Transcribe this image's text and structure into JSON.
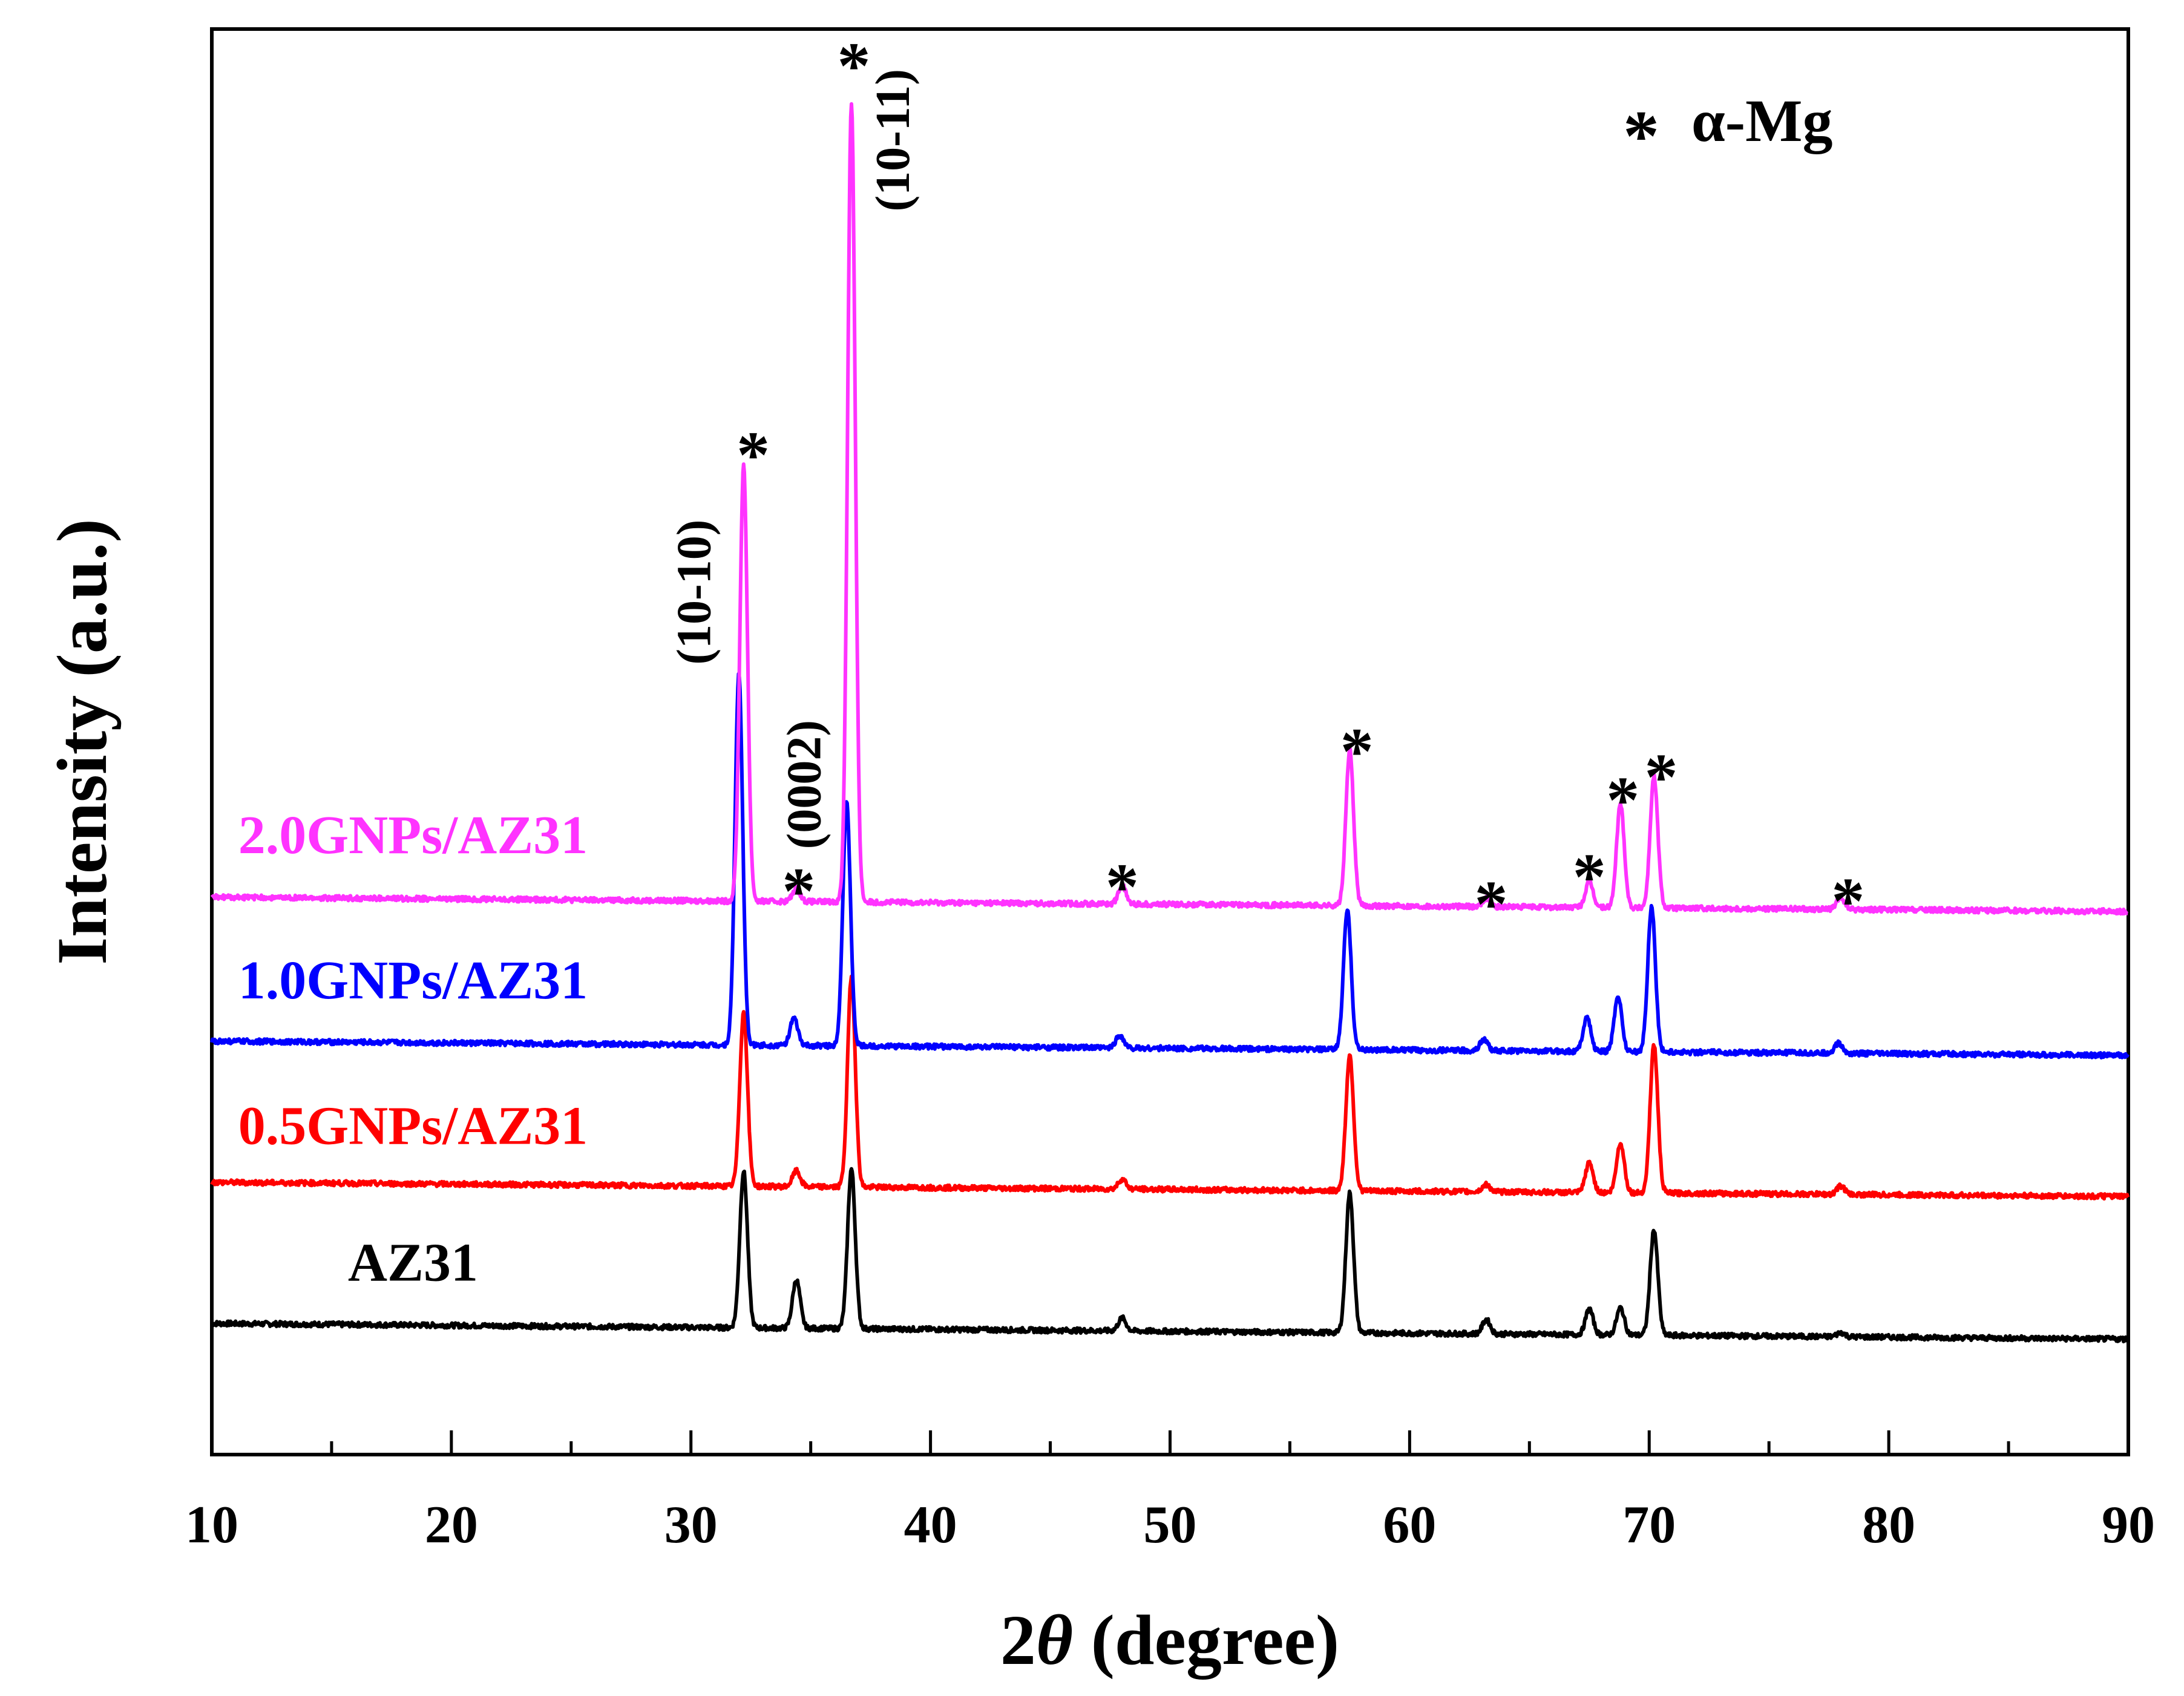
{
  "chart_data": {
    "type": "line",
    "title": "",
    "xlabel_prefix": "2",
    "xlabel_theta": "θ",
    "xlabel_suffix": " (degree)",
    "ylabel": "Intensity (a.u.)",
    "xlim": [
      10,
      90
    ],
    "ylim": [
      0,
      100
    ],
    "xticks": [
      10,
      20,
      30,
      40,
      50,
      60,
      70,
      80,
      90
    ],
    "minor_xticks": [
      15,
      25,
      35,
      45,
      55,
      65,
      75,
      85
    ],
    "grid": false,
    "legend": {
      "symbol": "*",
      "label": "α-Mg",
      "placement": "top-right"
    },
    "series": [
      {
        "name": "AZ31",
        "color": "#000000",
        "baseline": [
          9.2,
          8.1
        ],
        "peaks": [
          {
            "x": 32.2,
            "h": 11.0
          },
          {
            "x": 34.4,
            "h": 3.4
          },
          {
            "x": 36.7,
            "h": 11.2
          },
          {
            "x": 48.0,
            "h": 0.9
          },
          {
            "x": 57.5,
            "h": 9.8
          },
          {
            "x": 63.2,
            "h": 1.0
          },
          {
            "x": 67.5,
            "h": 1.8
          },
          {
            "x": 68.8,
            "h": 1.9
          },
          {
            "x": 70.2,
            "h": 7.4
          },
          {
            "x": 78.0,
            "h": 0.3
          }
        ]
      },
      {
        "name": "0.5GNPs/AZ31",
        "color": "#ff0000",
        "baseline": [
          19.1,
          18.1
        ],
        "peaks": [
          {
            "x": 32.2,
            "h": 12.2
          },
          {
            "x": 34.4,
            "h": 1.1
          },
          {
            "x": 36.7,
            "h": 14.8
          },
          {
            "x": 48.0,
            "h": 0.7
          },
          {
            "x": 57.5,
            "h": 9.5
          },
          {
            "x": 63.2,
            "h": 0.5
          },
          {
            "x": 67.5,
            "h": 2.1
          },
          {
            "x": 68.8,
            "h": 3.5
          },
          {
            "x": 70.2,
            "h": 10.4
          },
          {
            "x": 78.0,
            "h": 0.6
          }
        ]
      },
      {
        "name": "1.0GNPs/AZ31",
        "color": "#0000ff",
        "baseline": [
          29.0,
          28.0
        ],
        "peaks": [
          {
            "x": 32.0,
            "h": 26.0
          },
          {
            "x": 34.3,
            "h": 1.9
          },
          {
            "x": 36.5,
            "h": 17.0
          },
          {
            "x": 47.9,
            "h": 0.9
          },
          {
            "x": 57.4,
            "h": 9.8
          },
          {
            "x": 63.1,
            "h": 0.8
          },
          {
            "x": 67.4,
            "h": 2.4
          },
          {
            "x": 68.7,
            "h": 3.9
          },
          {
            "x": 70.1,
            "h": 10.2
          },
          {
            "x": 77.9,
            "h": 0.7
          }
        ]
      },
      {
        "name": "2.0GNPs/AZ31",
        "color": "#ff33ff",
        "baseline": [
          39.1,
          38.1
        ],
        "peaks": [
          {
            "x": 32.2,
            "h": 30.5
          },
          {
            "x": 34.4,
            "h": 0.9
          },
          {
            "x": 36.7,
            "h": 56.0
          },
          {
            "x": 48.0,
            "h": 1.3
          },
          {
            "x": 57.5,
            "h": 10.9
          },
          {
            "x": 63.2,
            "h": 0.6
          },
          {
            "x": 67.5,
            "h": 1.8
          },
          {
            "x": 68.8,
            "h": 7.3
          },
          {
            "x": 70.2,
            "h": 9.2
          },
          {
            "x": 78.0,
            "h": 0.8
          }
        ]
      }
    ],
    "annotations": [
      {
        "text": "(10-10)",
        "x": 30.8,
        "y": 60.5,
        "rotate": -90
      },
      {
        "text": "(0002)",
        "x": 35.4,
        "y": 47.0,
        "rotate": -90
      },
      {
        "text": "(10-11)",
        "x": 39.1,
        "y": 92.2,
        "rotate": -90
      }
    ],
    "markers": {
      "symbol": "*",
      "x": [
        32.6,
        34.5,
        36.8,
        48.0,
        57.8,
        63.4,
        67.5,
        68.9,
        70.5,
        78.3
      ],
      "y": [
        70.6,
        40.0,
        97.9,
        40.3,
        49.8,
        39.1,
        41.0,
        46.4,
        48.0,
        39.3
      ]
    },
    "series_labels": [
      {
        "text": "2.0GNPs/AZ31",
        "color": "#ff33ff",
        "x": 18.4,
        "y": 42.2
      },
      {
        "text": "1.0GNPs/AZ31",
        "color": "#0000ff",
        "x": 18.4,
        "y": 32.0
      },
      {
        "text": "0.5GNPs/AZ31",
        "color": "#ff0000",
        "x": 18.4,
        "y": 21.8
      },
      {
        "text": "AZ31",
        "color": "#000000",
        "x": 18.4,
        "y": 12.2
      }
    ]
  }
}
